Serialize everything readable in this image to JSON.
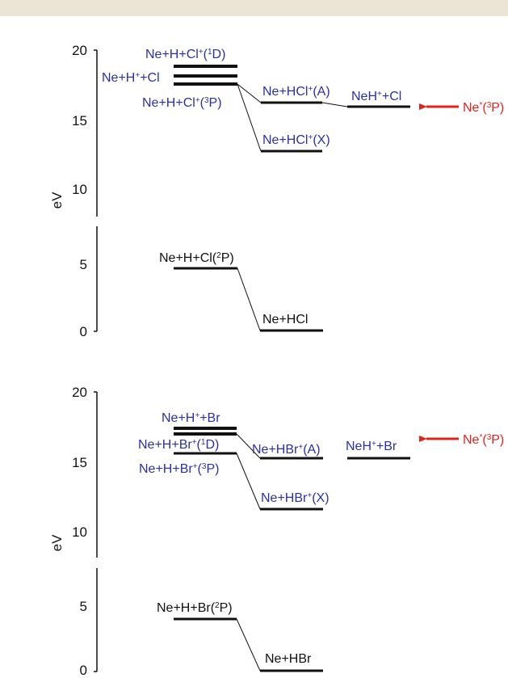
{
  "colors": {
    "black": "#111111",
    "blue": "#2b2fa8",
    "red": "#e2231a",
    "topbar": "#ece4d4"
  },
  "axis_unit": "eV",
  "panels": [
    {
      "id": "hcl",
      "ticks": [
        "20",
        "15",
        "10",
        "5",
        "0"
      ],
      "levels": [
        {
          "name": "ne-h-cl-plus-1d",
          "parts": [
            [
              "Ne+H+Cl",
              ""
            ],
            [
              "+",
              "sup"
            ],
            [
              "(",
              ""
            ],
            [
              "1",
              "sup"
            ],
            [
              "D)",
              ""
            ]
          ]
        },
        {
          "name": "ne-hplus-cl",
          "parts": [
            [
              "Ne+H",
              ""
            ],
            [
              "+",
              "sup"
            ],
            [
              "+Cl",
              ""
            ]
          ]
        },
        {
          "name": "ne-h-cl-plus-3p",
          "parts": [
            [
              "Ne+H+Cl",
              ""
            ],
            [
              "+",
              "sup"
            ],
            [
              "(",
              ""
            ],
            [
              "3",
              "sup"
            ],
            [
              "P)",
              ""
            ]
          ]
        },
        {
          "name": "ne-hcl-plus-a",
          "parts": [
            [
              "Ne+HCl",
              ""
            ],
            [
              "+",
              "sup"
            ],
            [
              "(A)",
              ""
            ]
          ]
        },
        {
          "name": "neh-plus-cl",
          "parts": [
            [
              "NeH",
              ""
            ],
            [
              "+",
              "sup"
            ],
            [
              "+Cl",
              ""
            ]
          ]
        },
        {
          "name": "ne-hcl-plus-x",
          "parts": [
            [
              "Ne+HCl",
              ""
            ],
            [
              "+",
              "sup"
            ],
            [
              "(X)",
              ""
            ]
          ]
        },
        {
          "name": "ne-h-cl-2p",
          "parts": [
            [
              "Ne+H+Cl(",
              ""
            ],
            [
              "2",
              "sup"
            ],
            [
              "P)",
              ""
            ]
          ]
        },
        {
          "name": "ne-hcl",
          "parts": [
            [
              "Ne+HCl",
              ""
            ]
          ]
        }
      ],
      "arrow_label": [
        [
          "Ne",
          ""
        ],
        [
          "*",
          "sup"
        ],
        [
          "(",
          ""
        ],
        [
          "3",
          "sup"
        ],
        [
          "P)",
          ""
        ]
      ]
    },
    {
      "id": "hbr",
      "ticks": [
        "20",
        "15",
        "10",
        "5",
        "0"
      ],
      "levels": [
        {
          "name": "ne-hplus-br",
          "parts": [
            [
              "Ne+H",
              ""
            ],
            [
              "+",
              "sup"
            ],
            [
              "+Br",
              ""
            ]
          ]
        },
        {
          "name": "ne-h-br-plus-1d",
          "parts": [
            [
              "Ne+H+Br",
              ""
            ],
            [
              "+",
              "sup"
            ],
            [
              "(",
              ""
            ],
            [
              "1",
              "sup"
            ],
            [
              "D)",
              ""
            ]
          ]
        },
        {
          "name": "ne-h-br-plus-3p",
          "parts": [
            [
              "Ne+H+Br",
              ""
            ],
            [
              "+",
              "sup"
            ],
            [
              "(",
              ""
            ],
            [
              "3",
              "sup"
            ],
            [
              "P)",
              ""
            ]
          ]
        },
        {
          "name": "ne-hbr-plus-a",
          "parts": [
            [
              "Ne+HBr",
              ""
            ],
            [
              "+",
              "sup"
            ],
            [
              "(A)",
              ""
            ]
          ]
        },
        {
          "name": "neh-plus-br",
          "parts": [
            [
              "NeH",
              ""
            ],
            [
              "+",
              "sup"
            ],
            [
              "+Br",
              ""
            ]
          ]
        },
        {
          "name": "ne-hbr-plus-x",
          "parts": [
            [
              "Ne+HBr",
              ""
            ],
            [
              "+",
              "sup"
            ],
            [
              "(X)",
              ""
            ]
          ]
        },
        {
          "name": "ne-h-br-2p",
          "parts": [
            [
              "Ne+H+Br(",
              ""
            ],
            [
              "2",
              "sup"
            ],
            [
              "P)",
              ""
            ]
          ]
        },
        {
          "name": "ne-hbr",
          "parts": [
            [
              "Ne+HBr",
              ""
            ]
          ]
        }
      ],
      "arrow_label": [
        [
          "Ne",
          ""
        ],
        [
          "*",
          "sup"
        ],
        [
          "(",
          ""
        ],
        [
          "3",
          "sup"
        ],
        [
          "P)",
          ""
        ]
      ]
    }
  ]
}
